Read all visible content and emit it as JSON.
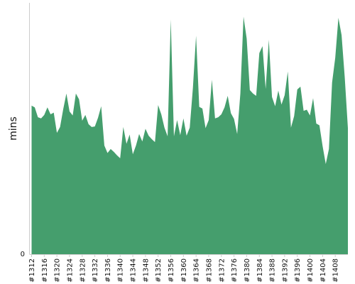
{
  "chart_data": {
    "type": "area",
    "title": "",
    "xlabel": "",
    "ylabel": "mins",
    "ylim": [
      0,
      43
    ],
    "y_ticks": [
      0
    ],
    "y_tick_labels": [
      "0"
    ],
    "grid": false,
    "legend": "none",
    "series_color": "#459e6d",
    "axis_color": "#cccccc",
    "text_color": "#111111",
    "x_tick_labels": [
      "#1312",
      "#1316",
      "#1320",
      "#1324",
      "#1328",
      "#1332",
      "#1336",
      "#1340",
      "#1344",
      "#1348",
      "#1352",
      "#1356",
      "#1360",
      "#1364",
      "#1368",
      "#1372",
      "#1376",
      "#1380",
      "#1384",
      "#1388",
      "#1392",
      "#1396",
      "#1400",
      "#1404",
      "#1408"
    ],
    "x": [
      "#1312",
      "#1313",
      "#1314",
      "#1315",
      "#1316",
      "#1317",
      "#1318",
      "#1319",
      "#1320",
      "#1321",
      "#1322",
      "#1323",
      "#1324",
      "#1325",
      "#1326",
      "#1327",
      "#1328",
      "#1329",
      "#1330",
      "#1331",
      "#1332",
      "#1333",
      "#1334",
      "#1335",
      "#1336",
      "#1337",
      "#1338",
      "#1339",
      "#1340",
      "#1341",
      "#1342",
      "#1343",
      "#1344",
      "#1345",
      "#1346",
      "#1347",
      "#1348",
      "#1349",
      "#1350",
      "#1351",
      "#1352",
      "#1353",
      "#1354",
      "#1355",
      "#1356",
      "#1357",
      "#1358",
      "#1359",
      "#1360",
      "#1361",
      "#1362",
      "#1363",
      "#1364",
      "#1365",
      "#1366",
      "#1367",
      "#1368",
      "#1369",
      "#1370",
      "#1371",
      "#1372",
      "#1373",
      "#1374",
      "#1375",
      "#1376",
      "#1377",
      "#1378",
      "#1379",
      "#1380",
      "#1381",
      "#1382",
      "#1383",
      "#1384",
      "#1385",
      "#1386",
      "#1387",
      "#1388",
      "#1389",
      "#1390",
      "#1391",
      "#1392",
      "#1393",
      "#1394",
      "#1395",
      "#1396",
      "#1397",
      "#1398",
      "#1399",
      "#1400",
      "#1401",
      "#1402",
      "#1403",
      "#1404",
      "#1405",
      "#1406",
      "#1407",
      "#1408",
      "#1409",
      "#1410",
      "#1411",
      "#1412"
    ],
    "series": [
      {
        "values": [
          25.7,
          25.4,
          23.7,
          23.5,
          24.1,
          25.4,
          24.2,
          24.5,
          21.0,
          22.0,
          25.1,
          27.8,
          24.7,
          24.0,
          27.8,
          26.8,
          23.1,
          24.1,
          22.5,
          22.0,
          22.1,
          23.6,
          25.6,
          18.8,
          17.5,
          18.2,
          17.7,
          17.1,
          16.6,
          22.0,
          19.1,
          20.7,
          17.3,
          18.8,
          20.8,
          19.5,
          21.7,
          20.5,
          19.9,
          19.4,
          25.8,
          24.2,
          21.9,
          20.4,
          40.6,
          20.4,
          23.2,
          20.6,
          23.5,
          20.5,
          21.9,
          28.8,
          37.8,
          25.5,
          25.2,
          21.8,
          23.2,
          30.2,
          23.5,
          23.7,
          24.2,
          25.4,
          27.4,
          24.4,
          23.4,
          20.8,
          27.8,
          41.1,
          37.3,
          28.4,
          27.8,
          27.4,
          34.8,
          36.0,
          28.6,
          37.1,
          27.2,
          25.6,
          28.3,
          25.9,
          27.5,
          31.6,
          21.9,
          23.9,
          28.5,
          29.0,
          24.8,
          25.0,
          24.0,
          27.0,
          22.6,
          22.3,
          18.7,
          15.6,
          18.2,
          29.7,
          34.0,
          40.9,
          37.9,
          30.6,
          21.8
        ]
      }
    ]
  }
}
